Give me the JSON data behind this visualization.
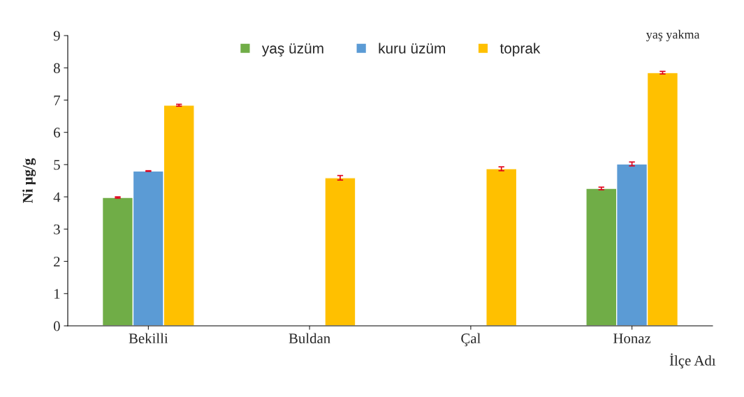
{
  "chart_data": {
    "type": "bar",
    "ylabel": "Ni µg/g",
    "xlabel": "İlçe Adı",
    "annotations": [
      "yaş yakma"
    ],
    "categories": [
      "Bekilli",
      "Buldan",
      "Çal",
      "Honaz"
    ],
    "series": [
      {
        "name": "yaş üzüm",
        "color": "#70ad47",
        "values": [
          3.98,
          null,
          null,
          4.26
        ],
        "errors": [
          0.02,
          null,
          null,
          0.04
        ]
      },
      {
        "name": "kuru üzüm",
        "color": "#5b9bd5",
        "values": [
          4.8,
          null,
          null,
          5.02
        ],
        "errors": [
          0.01,
          null,
          null,
          0.06
        ]
      },
      {
        "name": "toprak",
        "color": "#ffc000",
        "values": [
          6.84,
          4.59,
          4.87,
          7.85
        ],
        "errors": [
          0.03,
          0.07,
          0.06,
          0.04
        ]
      }
    ],
    "ylim": [
      0,
      9
    ],
    "yticks": [
      0,
      1,
      2,
      3,
      4,
      5,
      6,
      7,
      8,
      9
    ],
    "grid": false,
    "legend": "top"
  }
}
